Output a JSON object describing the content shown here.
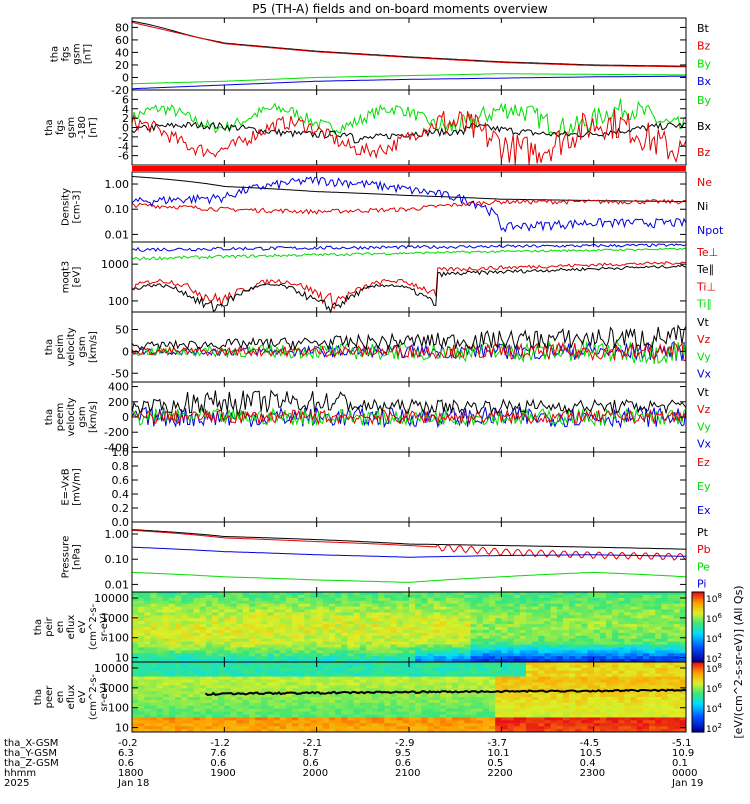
{
  "title": "P5 (TH-A) fields and on-board moments overview",
  "colors": {
    "black": "#000000",
    "red": "#e00000",
    "green": "#00dd00",
    "blue": "#0000dd"
  },
  "panels": [
    {
      "id": "fgs",
      "ylabel": [
        "tha",
        "fgs",
        "gsm",
        "[nT]"
      ],
      "ticks": [
        {
          "v": 80,
          "t": "80"
        },
        {
          "v": 60,
          "t": "60"
        },
        {
          "v": 40,
          "t": "40"
        },
        {
          "v": 20,
          "t": "20"
        },
        {
          "v": 0,
          "t": "0"
        },
        {
          "v": -20,
          "t": "-20"
        }
      ],
      "legend": [
        {
          "t": "Bt",
          "c": "black"
        },
        {
          "t": "Bz",
          "c": "red"
        },
        {
          "t": "By",
          "c": "green"
        },
        {
          "t": "Bx",
          "c": "blue"
        }
      ]
    },
    {
      "id": "fgs_dsl",
      "ylabel": [
        "tha",
        "fgs",
        "gsm",
        "-180",
        "[nT]"
      ],
      "ticks": [
        {
          "v": 6,
          "t": "6"
        },
        {
          "v": 4,
          "t": "4"
        },
        {
          "v": 2,
          "t": "2"
        },
        {
          "v": 0,
          "t": "0"
        },
        {
          "v": -2,
          "t": "-2"
        },
        {
          "v": -4,
          "t": "-4"
        },
        {
          "v": -6,
          "t": "-6"
        }
      ],
      "legend": [
        {
          "t": "By",
          "c": "green"
        },
        {
          "t": "Bx",
          "c": "black"
        },
        {
          "t": "Bz",
          "c": "red"
        }
      ]
    },
    {
      "id": "density",
      "ylabel": [
        "Density",
        "[cm-3]"
      ],
      "ticks": [
        {
          "v": 1.0,
          "t": "1.00"
        },
        {
          "v": 0.1,
          "t": "0.10"
        },
        {
          "v": 0.01,
          "t": "0.01"
        }
      ],
      "legend": [
        {
          "t": "Ne",
          "c": "red"
        },
        {
          "t": "Ni",
          "c": "black"
        },
        {
          "t": "Npot",
          "c": "blue"
        }
      ]
    },
    {
      "id": "temp",
      "ylabel": [
        "moqt3",
        "[eV]"
      ],
      "ticks": [
        {
          "v": 1000,
          "t": "1000"
        },
        {
          "v": 100,
          "t": "100"
        }
      ],
      "legend": [
        {
          "t": "Te⊥",
          "c": "red"
        },
        {
          "t": "Te∥",
          "c": "black"
        },
        {
          "t": "Ti⊥",
          "c": "red"
        },
        {
          "t": "Ti∥",
          "c": "green"
        }
      ]
    },
    {
      "id": "peim_v",
      "ylabel": [
        "tha",
        "peim",
        "velocity",
        "gsm",
        "[km/s]"
      ],
      "ticks": [
        {
          "v": 50,
          "t": "50"
        },
        {
          "v": 0,
          "t": "0"
        },
        {
          "v": -50,
          "t": "-50"
        }
      ],
      "legend": [
        {
          "t": "Vt",
          "c": "black"
        },
        {
          "t": "Vz",
          "c": "red"
        },
        {
          "t": "Vy",
          "c": "green"
        },
        {
          "t": "Vx",
          "c": "blue"
        }
      ]
    },
    {
      "id": "peem_v",
      "ylabel": [
        "tha",
        "peem",
        "velocity",
        "gsm",
        "[km/s]"
      ],
      "ticks": [
        {
          "v": 400,
          "t": "400"
        },
        {
          "v": 200,
          "t": "200"
        },
        {
          "v": 0,
          "t": "0"
        },
        {
          "v": -200,
          "t": "-200"
        },
        {
          "v": -400,
          "t": "-400"
        }
      ],
      "legend": [
        {
          "t": "Vt",
          "c": "black"
        },
        {
          "t": "Vz",
          "c": "red"
        },
        {
          "t": "Vy",
          "c": "green"
        },
        {
          "t": "Vx",
          "c": "blue"
        }
      ]
    },
    {
      "id": "efield",
      "ylabel": [
        "E=-VxB",
        "[mV/m]"
      ],
      "ticks": [
        {
          "v": 1.0,
          "t": "1.0"
        },
        {
          "v": 0.8,
          "t": "0.8"
        },
        {
          "v": 0.6,
          "t": "0.6"
        },
        {
          "v": 0.4,
          "t": "0.4"
        },
        {
          "v": 0.2,
          "t": "0.2"
        },
        {
          "v": 0.0,
          "t": "0.0"
        }
      ],
      "legend": [
        {
          "t": "Ez",
          "c": "red"
        },
        {
          "t": "Ey",
          "c": "green"
        },
        {
          "t": "Ex",
          "c": "blue"
        }
      ]
    },
    {
      "id": "pressure",
      "ylabel": [
        "Pressure",
        "[nPa]"
      ],
      "ticks": [
        {
          "v": 1.0,
          "t": "1.00"
        },
        {
          "v": 0.1,
          "t": "0.10"
        },
        {
          "v": 0.01,
          "t": "0.01"
        }
      ],
      "legend": [
        {
          "t": "Pt",
          "c": "black"
        },
        {
          "t": "Pb",
          "c": "red"
        },
        {
          "t": "Pe",
          "c": "green"
        },
        {
          "t": "Pi",
          "c": "blue"
        }
      ]
    },
    {
      "id": "peir",
      "ylabel": [
        "tha",
        "peir",
        "en",
        "eflux",
        "eV",
        "(cm^2-s-",
        "sr-eV)"
      ],
      "ticks": [
        {
          "v": 10000,
          "t": "10000"
        },
        {
          "v": 1000,
          "t": "1000"
        },
        {
          "v": 100,
          "t": "100"
        },
        {
          "v": 10,
          "t": "10"
        }
      ],
      "legend": []
    },
    {
      "id": "peer",
      "ylabel": [
        "tha",
        "peer",
        "en",
        "eflux",
        "eV",
        "(cm^2-s-",
        "sr-eV)"
      ],
      "ticks": [
        {
          "v": 10000,
          "t": "10000"
        },
        {
          "v": 1000,
          "t": "1000"
        },
        {
          "v": 100,
          "t": "100"
        },
        {
          "v": 10,
          "t": "10"
        }
      ],
      "legend": []
    }
  ],
  "colorbar": {
    "label": "[eV/(cm^2-s-sr-eV)] (All Qs)",
    "upper_ticks": [
      "10^8",
      "10^6",
      "10^4",
      "10^2"
    ],
    "lower_ticks": [
      "10^8",
      "10^6",
      "10^4",
      "10^2"
    ]
  },
  "xaxis": {
    "row_labels": [
      "tha_X-GSM",
      "tha_Y-GSM",
      "tha_Z-GSM",
      "hhmm",
      "2025"
    ],
    "columns": [
      {
        "x": "-0.2",
        "y": "6.3",
        "z": "0.6",
        "t": "1800",
        "d": "Jan 18"
      },
      {
        "x": "-1.2",
        "y": "7.6",
        "z": "0.6",
        "t": "1900",
        "d": ""
      },
      {
        "x": "-2.1",
        "y": "8.7",
        "z": "0.6",
        "t": "2000",
        "d": ""
      },
      {
        "x": "-2.9",
        "y": "9.5",
        "z": "0.6",
        "t": "2100",
        "d": ""
      },
      {
        "x": "-3.7",
        "y": "10.1",
        "z": "0.5",
        "t": "2200",
        "d": ""
      },
      {
        "x": "-4.5",
        "y": "10.5",
        "z": "0.4",
        "t": "2300",
        "d": ""
      },
      {
        "x": "-5.1",
        "y": "10.9",
        "z": "0.1",
        "t": "0000",
        "d": "Jan 19"
      }
    ]
  },
  "chart_data": {
    "type": "line",
    "title": "P5 (TH-A) fields and on-board moments overview",
    "x_time": [
      "1800",
      "1900",
      "2000",
      "2100",
      "2200",
      "2300",
      "0000"
    ],
    "series_approx": {
      "Bt_nT": [
        90,
        55,
        42,
        33,
        25,
        20,
        18
      ],
      "Bz_nT": [
        88,
        54,
        41,
        32,
        24,
        19,
        17
      ],
      "By_nT": [
        -10,
        -6,
        0,
        3,
        6,
        5,
        4
      ],
      "Bx_nT": [
        -18,
        -12,
        -6,
        -3,
        -1,
        1,
        2
      ],
      "Ni_cm3": [
        2.0,
        0.8,
        0.5,
        0.35,
        0.25,
        0.22,
        0.2
      ],
      "Ne_cm3": [
        0.15,
        0.1,
        0.08,
        0.1,
        0.2,
        0.2,
        0.2
      ],
      "Npot_cm3": [
        0.2,
        0.3,
        1.5,
        0.6,
        0.02,
        0.03,
        0.03
      ],
      "Pt_nPa": [
        1.5,
        0.8,
        0.6,
        0.4,
        0.35,
        0.3,
        0.25
      ],
      "Pb_nPa": [
        1.4,
        0.7,
        0.5,
        0.35,
        0.2,
        0.15,
        0.13
      ],
      "Pe_nPa": [
        0.03,
        0.02,
        0.015,
        0.012,
        0.02,
        0.03,
        0.02
      ],
      "Pi_nPa": [
        0.3,
        0.2,
        0.15,
        0.12,
        0.14,
        0.15,
        0.13
      ]
    }
  }
}
